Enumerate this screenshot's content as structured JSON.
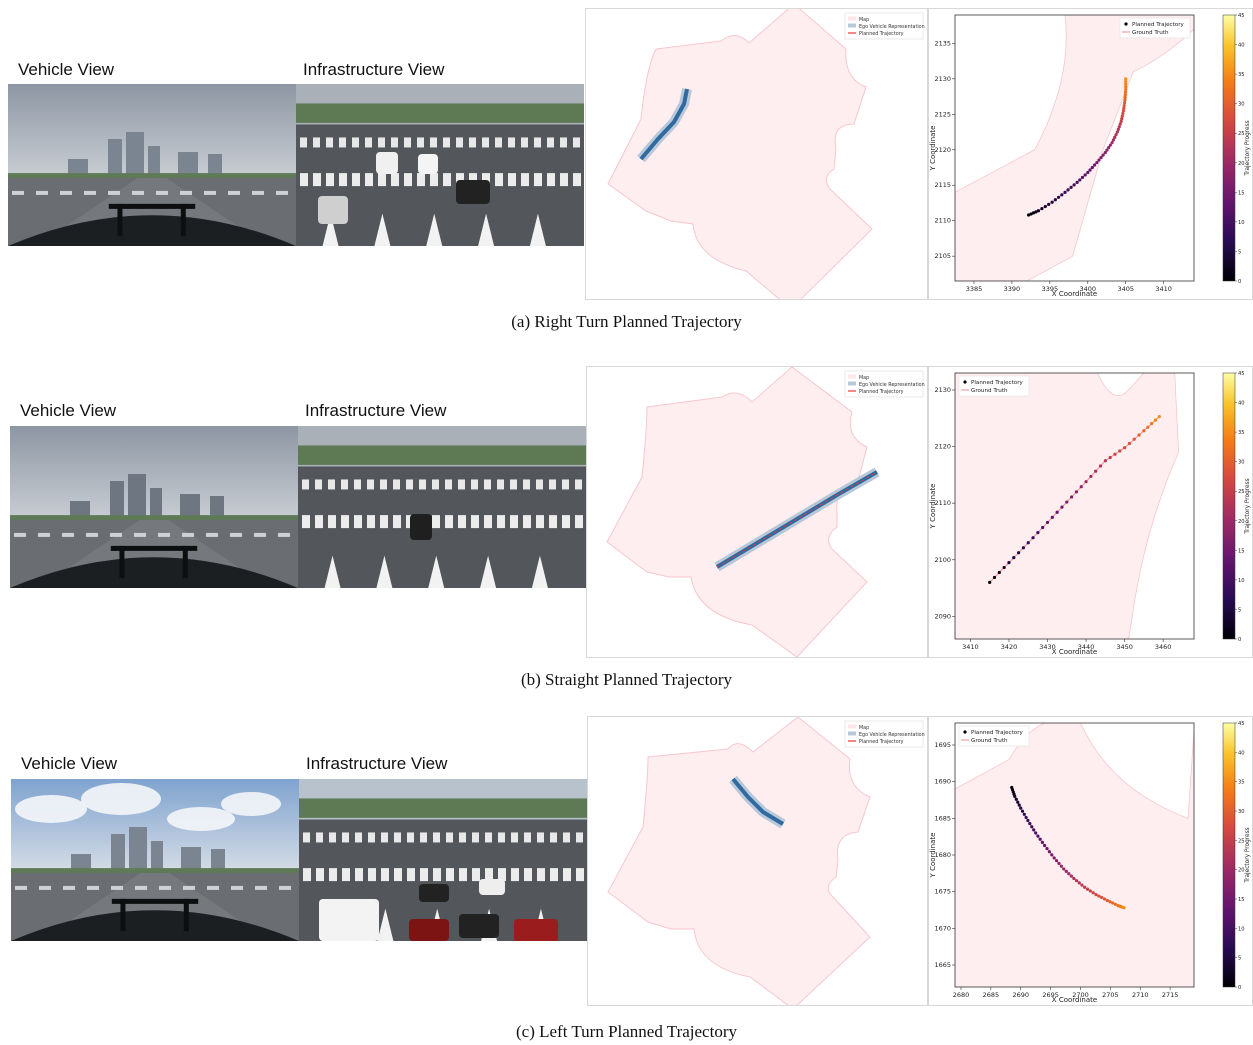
{
  "panels": [
    {
      "vehicle_label": "Vehicle View",
      "infra_label": "Infrastructure View",
      "caption": "(a) Right Turn Planned Trajectory",
      "map_legend": [
        "Map",
        "Ego Vehicle Representation",
        "Planned Trajectory"
      ],
      "chart_data": {
        "type": "scatter",
        "xlabel": "X Coordinate",
        "ylabel": "Y Coordinate",
        "xlim": [
          3382.5,
          3414
        ],
        "ylim": [
          2101.5,
          2139
        ],
        "xticks": [
          3385,
          3390,
          3395,
          3400,
          3405,
          3410
        ],
        "yticks": [
          2105,
          2110,
          2115,
          2120,
          2125,
          2130,
          2135
        ],
        "legend": [
          "Planned Trajectory",
          "Ground Truth"
        ],
        "legend_position": "top-right",
        "colorbar_label": "Trajectory Progress",
        "colorbar_range": [
          0,
          45
        ],
        "colorbar_ticks": [
          0,
          5,
          10,
          15,
          20,
          25,
          30,
          35,
          40,
          45
        ],
        "planned_trajectory": [
          [
            3405.0,
            2130.0
          ],
          [
            3405.0,
            2128.5
          ],
          [
            3404.9,
            2127.0
          ],
          [
            3404.7,
            2125.5
          ],
          [
            3404.4,
            2124.0
          ],
          [
            3403.9,
            2122.5
          ],
          [
            3403.2,
            2121.0
          ],
          [
            3402.3,
            2119.6
          ],
          [
            3401.2,
            2118.2
          ],
          [
            3400.0,
            2116.8
          ],
          [
            3398.6,
            2115.4
          ],
          [
            3397.0,
            2114.0
          ],
          [
            3395.3,
            2112.6
          ],
          [
            3393.5,
            2111.4
          ],
          [
            3392.2,
            2110.8
          ]
        ]
      }
    },
    {
      "vehicle_label": "Vehicle View",
      "infra_label": "Infrastructure View",
      "caption": "(b) Straight Planned Trajectory",
      "map_legend": [
        "Map",
        "Ego Vehicle Representation",
        "Planned Trajectory"
      ],
      "chart_data": {
        "type": "scatter",
        "xlabel": "X Coordinate",
        "ylabel": "Y Coordinate",
        "xlim": [
          3406,
          3468
        ],
        "ylim": [
          2086,
          2133
        ],
        "xticks": [
          3410,
          3420,
          3430,
          3440,
          3450,
          3460
        ],
        "yticks": [
          2090,
          2100,
          2110,
          2120,
          2130
        ],
        "legend": [
          "Planned Trajectory",
          "Ground Truth"
        ],
        "legend_position": "top-left",
        "colorbar_label": "Trajectory Progress",
        "colorbar_range": [
          0,
          45
        ],
        "colorbar_ticks": [
          0,
          5,
          10,
          15,
          20,
          25,
          30,
          35,
          40,
          45
        ],
        "planned_trajectory": [
          [
            3415.0,
            2096.0
          ],
          [
            3420.0,
            2099.5
          ],
          [
            3425.0,
            2103.0
          ],
          [
            3430.0,
            2106.6
          ],
          [
            3435.0,
            2110.2
          ],
          [
            3440.0,
            2113.8
          ],
          [
            3445.0,
            2117.5
          ],
          [
            3450.0,
            2119.8
          ],
          [
            3455.0,
            2122.8
          ],
          [
            3459.0,
            2125.3
          ]
        ]
      }
    },
    {
      "vehicle_label": "Vehicle View",
      "infra_label": "Infrastructure View",
      "caption": "(c) Left Turn Planned Trajectory",
      "map_legend": [
        "Map",
        "Ego Vehicle Representation",
        "Planned Trajectory"
      ],
      "chart_data": {
        "type": "scatter",
        "xlabel": "X Coordinate",
        "ylabel": "Y Coordinate",
        "xlim": [
          2679,
          2719
        ],
        "ylim": [
          1662,
          1698
        ],
        "xticks": [
          2680,
          2685,
          2690,
          2695,
          2700,
          2705,
          2710,
          2715
        ],
        "yticks": [
          1665,
          1670,
          1675,
          1680,
          1685,
          1690,
          1695
        ],
        "legend": [
          "Planned Trajectory",
          "Ground Truth"
        ],
        "legend_position": "top-left",
        "colorbar_label": "Trajectory Progress",
        "colorbar_range": [
          0,
          45
        ],
        "colorbar_ticks": [
          0,
          5,
          10,
          15,
          20,
          25,
          30,
          35,
          40,
          45
        ],
        "planned_trajectory": [
          [
            2688.5,
            1689.2
          ],
          [
            2689.0,
            1688.0
          ],
          [
            2690.0,
            1686.4
          ],
          [
            2691.2,
            1684.7
          ],
          [
            2692.5,
            1683.0
          ],
          [
            2694.0,
            1681.3
          ],
          [
            2695.6,
            1679.6
          ],
          [
            2697.2,
            1678.1
          ],
          [
            2698.9,
            1676.8
          ],
          [
            2700.7,
            1675.6
          ],
          [
            2702.6,
            1674.6
          ],
          [
            2704.5,
            1673.8
          ],
          [
            2706.3,
            1673.1
          ],
          [
            2707.3,
            1672.8
          ]
        ]
      }
    }
  ]
}
